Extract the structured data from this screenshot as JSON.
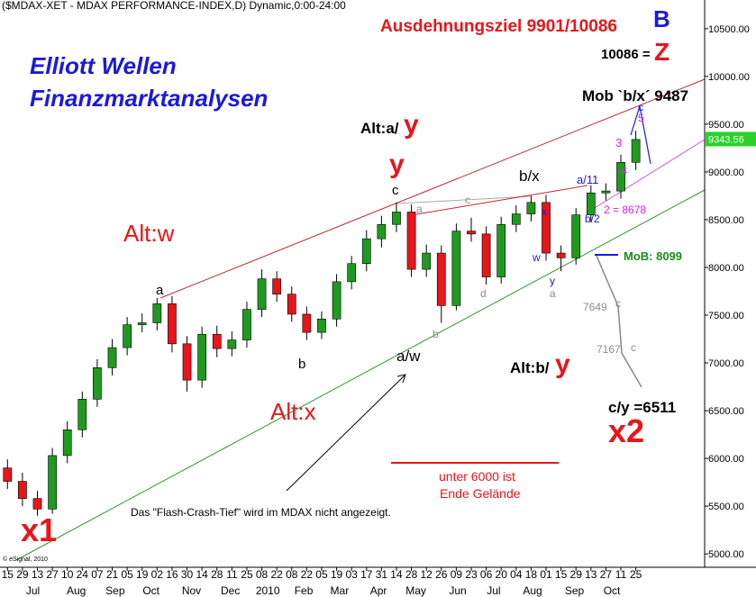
{
  "chart_data": {
    "type": "candlestick",
    "title": "($MDAX-XET - MDAX PERFORMANCE-INDEX,D) Dynamic,0:00-24:00",
    "copyright": "© eSignal, 2010",
    "up_color": "#1f9a1f",
    "down_color": "#e8151b",
    "x": [
      0,
      1,
      2,
      3,
      4,
      5,
      6,
      7,
      8,
      9,
      10,
      11,
      12,
      13,
      14,
      15,
      16,
      17,
      18,
      19,
      20,
      21,
      22,
      23,
      24,
      25,
      26,
      27,
      28,
      29,
      30,
      31,
      32,
      33,
      34,
      35,
      36,
      37,
      38,
      39,
      40,
      41,
      42
    ],
    "open": [
      5900,
      5760,
      5580,
      5470,
      6030,
      6300,
      6620,
      6950,
      7160,
      7400,
      7420,
      7620,
      7200,
      6820,
      7300,
      7150,
      7240,
      7560,
      7880,
      7720,
      7510,
      7320,
      7460,
      7850,
      8040,
      8300,
      8450,
      8580,
      7980,
      8150,
      7600,
      8380,
      8350,
      7900,
      8450,
      8560,
      8680,
      8150,
      8100,
      8550,
      8780,
      8800,
      9100
    ],
    "high": [
      5990,
      5850,
      5660,
      6110,
      6390,
      6700,
      7040,
      7250,
      7480,
      7520,
      7680,
      7700,
      7280,
      7380,
      7390,
      7330,
      7640,
      7980,
      7960,
      7800,
      7590,
      7540,
      7930,
      8120,
      8390,
      8540,
      8680,
      8660,
      8240,
      8230,
      8460,
      8520,
      8430,
      8530,
      8650,
      8750,
      8760,
      8230,
      8620,
      8860,
      8880,
      9180,
      9430
    ],
    "low": [
      5680,
      5500,
      5400,
      5420,
      5950,
      6220,
      6540,
      6870,
      7080,
      7320,
      7340,
      7110,
      6700,
      6740,
      7060,
      7070,
      7160,
      7480,
      7640,
      7430,
      7240,
      7250,
      7380,
      7770,
      7960,
      8210,
      8370,
      7900,
      7900,
      7420,
      7550,
      8270,
      7820,
      7830,
      8370,
      8480,
      8070,
      7960,
      8030,
      8470,
      8700,
      8720,
      9020
    ],
    "close": [
      5760,
      5580,
      5470,
      6030,
      6300,
      6620,
      6950,
      7160,
      7400,
      7420,
      7620,
      7200,
      6820,
      7300,
      7150,
      7240,
      7560,
      7880,
      7720,
      7510,
      7320,
      7460,
      7850,
      8040,
      8300,
      8450,
      8580,
      7980,
      8150,
      7600,
      8380,
      8350,
      7900,
      8450,
      8560,
      8680,
      8150,
      8100,
      8550,
      8780,
      8800,
      9100,
      9340
    ],
    "last_price": 9343.56,
    "xlim": [
      -0.5,
      46.6
    ],
    "ylim": [
      4860,
      10800
    ],
    "xticks": [
      {
        "value": 0,
        "label": "15"
      },
      {
        "value": 1,
        "label": "29"
      },
      {
        "value": 2,
        "label": "13"
      },
      {
        "value": 3,
        "label": "27"
      },
      {
        "value": 4,
        "label": "10"
      },
      {
        "value": 5,
        "label": "24"
      },
      {
        "value": 6,
        "label": "07"
      },
      {
        "value": 7,
        "label": "21"
      },
      {
        "value": 8,
        "label": "05"
      },
      {
        "value": 9,
        "label": "19"
      },
      {
        "value": 10,
        "label": "02"
      },
      {
        "value": 11,
        "label": "16"
      },
      {
        "value": 12,
        "label": "30"
      },
      {
        "value": 13,
        "label": "14"
      },
      {
        "value": 14,
        "label": "28"
      },
      {
        "value": 15,
        "label": "11"
      },
      {
        "value": 16,
        "label": "25"
      },
      {
        "value": 17,
        "label": "08"
      },
      {
        "value": 18,
        "label": "22"
      },
      {
        "value": 19,
        "label": "08"
      },
      {
        "value": 20,
        "label": "22"
      },
      {
        "value": 21,
        "label": "05"
      },
      {
        "value": 22,
        "label": "19"
      },
      {
        "value": 23,
        "label": "03"
      },
      {
        "value": 24,
        "label": "17"
      },
      {
        "value": 25,
        "label": "31"
      },
      {
        "value": 26,
        "label": "14"
      },
      {
        "value": 27,
        "label": "28"
      },
      {
        "value": 28,
        "label": "12"
      },
      {
        "value": 29,
        "label": "26"
      },
      {
        "value": 30,
        "label": "09"
      },
      {
        "value": 31,
        "label": "23"
      },
      {
        "value": 32,
        "label": "06"
      },
      {
        "value": 33,
        "label": "20"
      },
      {
        "value": 34,
        "label": "04"
      },
      {
        "value": 35,
        "label": "18"
      },
      {
        "value": 36,
        "label": "01"
      },
      {
        "value": 37,
        "label": "15"
      },
      {
        "value": 38,
        "label": "29"
      },
      {
        "value": 39,
        "label": "13"
      },
      {
        "value": 40,
        "label": "27"
      },
      {
        "value": 41,
        "label": "11"
      },
      {
        "value": 42,
        "label": "25"
      }
    ],
    "month_ticks": [
      {
        "value": 1.7,
        "label": "Jul"
      },
      {
        "value": 4.6,
        "label": "Aug"
      },
      {
        "value": 7.2,
        "label": "Sep"
      },
      {
        "value": 9.6,
        "label": "Oct"
      },
      {
        "value": 12.3,
        "label": "Nov"
      },
      {
        "value": 14.9,
        "label": "Dec"
      },
      {
        "value": 17.4,
        "label": "2010"
      },
      {
        "value": 19.8,
        "label": "Feb"
      },
      {
        "value": 22.2,
        "label": "Mar"
      },
      {
        "value": 24.8,
        "label": "Apr"
      },
      {
        "value": 27.3,
        "label": "May"
      },
      {
        "value": 30.1,
        "label": "Jun"
      },
      {
        "value": 32.5,
        "label": "Jul"
      },
      {
        "value": 35.1,
        "label": "Aug"
      },
      {
        "value": 37.9,
        "label": "Sep"
      },
      {
        "value": 40.4,
        "label": "Oct"
      }
    ],
    "yticks": [
      {
        "value": 5000,
        "label": "5000.00"
      },
      {
        "value": 5500,
        "label": "5500.00"
      },
      {
        "value": 6000,
        "label": "6000.00"
      },
      {
        "value": 6500,
        "label": "6500.00"
      },
      {
        "value": 7000,
        "label": "7000.00"
      },
      {
        "value": 7500,
        "label": "7500.00"
      },
      {
        "value": 8000,
        "label": "8000.00"
      },
      {
        "value": 8500,
        "label": "8500.00"
      },
      {
        "value": 9000,
        "label": "9000.00"
      },
      {
        "value": 9500,
        "label": "9500.00"
      },
      {
        "value": 10000,
        "label": "10000.00"
      },
      {
        "value": 10500,
        "label": "10500.00"
      }
    ],
    "annotations": [
      "Ausdehnungsziel 9901/10086",
      "B",
      "10086 =",
      "Z",
      "Elliott Wellen",
      "Finanzmarktanalysen",
      "Mob `b/x´ 9487",
      "c",
      "5",
      "Alt:a/",
      "y",
      "y",
      "c",
      "b/x",
      "a/11",
      "3",
      "4",
      "Alt:w",
      "a",
      "c",
      "x",
      "w",
      "y",
      "a",
      "d",
      "b",
      "b/2",
      "2 = 8678",
      "MoB: 8099",
      "a",
      "b",
      "a/w",
      "7649",
      "c",
      "7167",
      "c",
      "Alt:b/",
      "y",
      "Alt:x",
      "c/y =6511",
      "x2",
      "unter 6000 ist",
      "Ende Gelände",
      "Das \"Flash-Crash-Tief\" wird im MDAX nicht angezeigt.",
      "x1"
    ]
  }
}
